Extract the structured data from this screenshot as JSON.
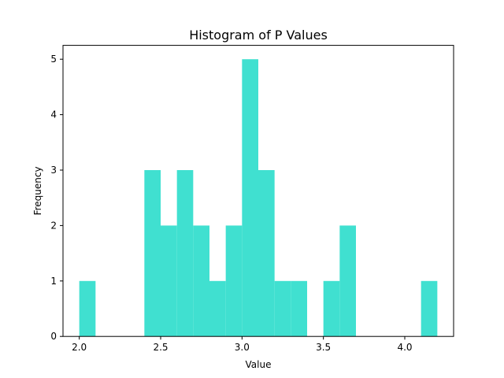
{
  "chart_data": {
    "type": "bar",
    "title": "Histogram of P Values",
    "xlabel": "Value",
    "ylabel": "Frequency",
    "bins": [
      {
        "x0": 2.0,
        "x1": 2.1,
        "count": 1
      },
      {
        "x0": 2.1,
        "x1": 2.2,
        "count": 0
      },
      {
        "x0": 2.2,
        "x1": 2.3,
        "count": 0
      },
      {
        "x0": 2.3,
        "x1": 2.4,
        "count": 0
      },
      {
        "x0": 2.4,
        "x1": 2.5,
        "count": 3
      },
      {
        "x0": 2.5,
        "x1": 2.6,
        "count": 2
      },
      {
        "x0": 2.6,
        "x1": 2.7,
        "count": 3
      },
      {
        "x0": 2.7,
        "x1": 2.8,
        "count": 2
      },
      {
        "x0": 2.8,
        "x1": 2.9,
        "count": 1
      },
      {
        "x0": 2.9,
        "x1": 3.0,
        "count": 2
      },
      {
        "x0": 3.0,
        "x1": 3.1,
        "count": 5
      },
      {
        "x0": 3.1,
        "x1": 3.2,
        "count": 3
      },
      {
        "x0": 3.2,
        "x1": 3.3,
        "count": 1
      },
      {
        "x0": 3.3,
        "x1": 3.4,
        "count": 1
      },
      {
        "x0": 3.4,
        "x1": 3.5,
        "count": 0
      },
      {
        "x0": 3.5,
        "x1": 3.6,
        "count": 1
      },
      {
        "x0": 3.6,
        "x1": 3.7,
        "count": 2
      },
      {
        "x0": 3.7,
        "x1": 3.8,
        "count": 0
      },
      {
        "x0": 3.8,
        "x1": 3.9,
        "count": 0
      },
      {
        "x0": 3.9,
        "x1": 4.0,
        "count": 0
      },
      {
        "x0": 4.0,
        "x1": 4.1,
        "count": 0
      },
      {
        "x0": 4.1,
        "x1": 4.2,
        "count": 1
      }
    ],
    "xlim": [
      1.9,
      4.3
    ],
    "ylim": [
      0,
      5.25
    ],
    "xticks": [
      2.0,
      2.5,
      3.0,
      3.5,
      4.0
    ],
    "xtick_labels": [
      "2.0",
      "2.5",
      "3.0",
      "3.5",
      "4.0"
    ],
    "yticks": [
      0,
      1,
      2,
      3,
      4,
      5
    ],
    "ytick_labels": [
      "0",
      "1",
      "2",
      "3",
      "4",
      "5"
    ],
    "bar_color": "#40E0D0",
    "grid": false,
    "legend": "none"
  }
}
